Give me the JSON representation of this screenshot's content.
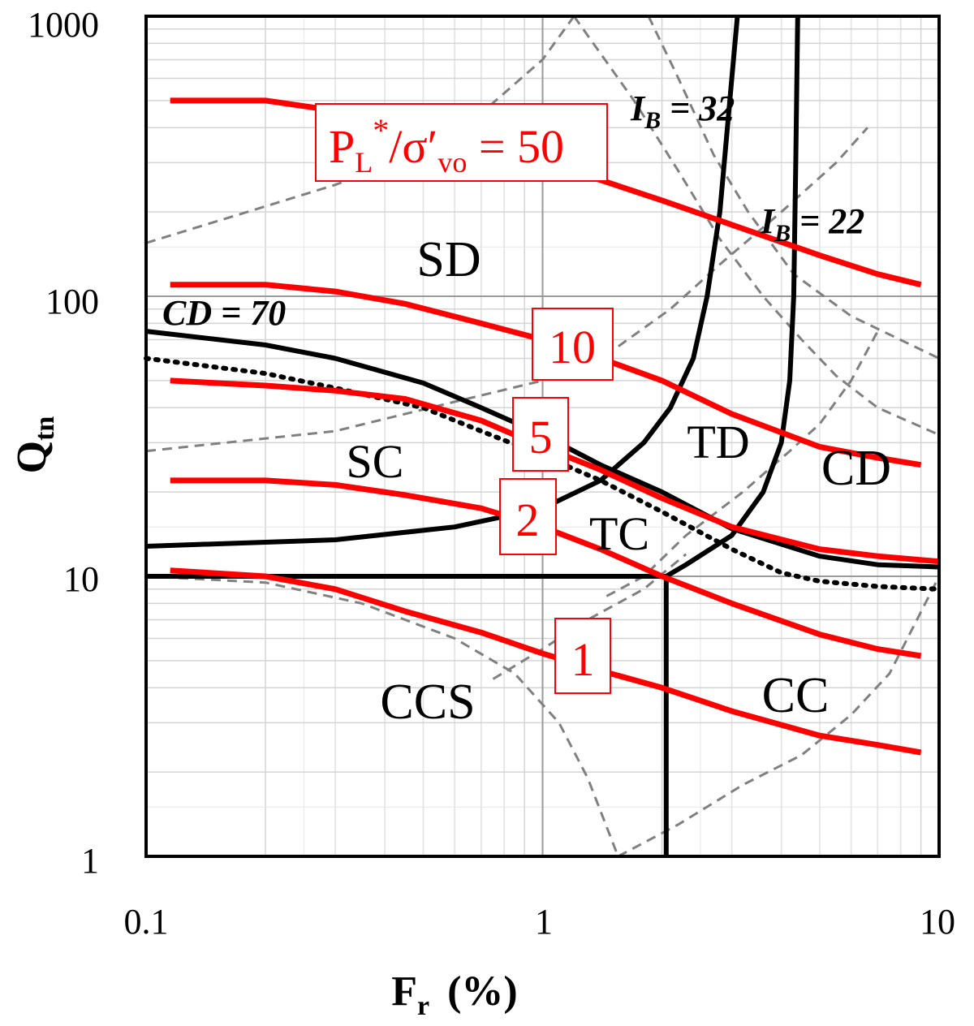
{
  "chart_data": {
    "type": "line",
    "xlabel_main": "F",
    "xlabel_sub": "r",
    "xlabel_unit": "(%)",
    "ylabel_main": "Q",
    "ylabel_sub": "tn",
    "xscale": "log",
    "yscale": "log",
    "xlim": [
      0.1,
      10
    ],
    "ylim": [
      1,
      1000
    ],
    "x_ticks": [
      "0.1",
      "1",
      "10"
    ],
    "y_ticks": [
      "1",
      "10",
      "100",
      "1000"
    ],
    "grid": true,
    "zones": [
      "SD",
      "SC",
      "TD",
      "CD",
      "TC",
      "CCS",
      "CC"
    ],
    "pl_label": {
      "prefix": "P",
      "sub1": "L",
      "sup": "*",
      "slash_sigma": "/σ′",
      "sub2": "vo",
      "suffix": " = 50"
    },
    "ib_labels": [
      {
        "main": "I",
        "sub": "B",
        "rest": " = 32"
      },
      {
        "main": "I",
        "sub": "B",
        "rest": " = 22"
      }
    ],
    "cd_label": "CD = 70",
    "series": [
      {
        "label": "50",
        "color": "#ff0000",
        "points": [
          [
            0.115,
            500
          ],
          [
            0.2,
            500
          ],
          [
            0.3,
            460
          ],
          [
            0.45,
            390
          ],
          [
            0.7,
            330
          ],
          [
            1.0,
            295
          ],
          [
            1.4,
            260
          ],
          [
            2.0,
            220
          ],
          [
            3.0,
            180
          ],
          [
            5.0,
            140
          ],
          [
            7.0,
            120
          ],
          [
            9.0,
            110
          ]
        ]
      },
      {
        "label": "10",
        "color": "#ff0000",
        "points": [
          [
            0.115,
            110
          ],
          [
            0.2,
            110
          ],
          [
            0.3,
            104
          ],
          [
            0.45,
            94
          ],
          [
            0.7,
            80
          ],
          [
            1.0,
            70
          ],
          [
            1.4,
            60
          ],
          [
            2.0,
            50
          ],
          [
            3.0,
            38
          ],
          [
            5.0,
            29
          ],
          [
            7.0,
            26.5
          ],
          [
            9.0,
            25
          ]
        ]
      },
      {
        "label": "5",
        "color": "#ff0000",
        "points": [
          [
            0.115,
            50
          ],
          [
            0.2,
            48
          ],
          [
            0.3,
            46
          ],
          [
            0.45,
            43
          ],
          [
            0.7,
            36
          ],
          [
            1.0,
            29
          ],
          [
            1.4,
            24
          ],
          [
            2.0,
            19
          ],
          [
            3.0,
            15
          ],
          [
            5.0,
            12.5
          ],
          [
            7.0,
            11.8
          ],
          [
            10,
            11.3
          ]
        ]
      },
      {
        "label": "2",
        "color": "#ff0000",
        "points": [
          [
            0.115,
            22
          ],
          [
            0.2,
            22
          ],
          [
            0.3,
            21.2
          ],
          [
            0.45,
            19.5
          ],
          [
            0.7,
            17.5
          ],
          [
            1.0,
            15
          ],
          [
            1.4,
            12.5
          ],
          [
            2.0,
            10
          ],
          [
            3.0,
            8
          ],
          [
            5.0,
            6.2
          ],
          [
            7.0,
            5.5
          ],
          [
            9.0,
            5.2
          ]
        ]
      },
      {
        "label": "1",
        "color": "#ff0000",
        "points": [
          [
            0.115,
            10.5
          ],
          [
            0.2,
            10
          ],
          [
            0.3,
            9
          ],
          [
            0.45,
            7.5
          ],
          [
            0.7,
            6.3
          ],
          [
            1.0,
            5.3
          ],
          [
            1.4,
            4.6
          ],
          [
            2.0,
            4
          ],
          [
            3.0,
            3.3
          ],
          [
            5.0,
            2.7
          ],
          [
            7.0,
            2.5
          ],
          [
            9.0,
            2.35
          ]
        ]
      },
      {
        "label": "CD = 70",
        "color": "#000000",
        "points": [
          [
            0.1,
            75
          ],
          [
            0.2,
            67
          ],
          [
            0.3,
            60
          ],
          [
            0.5,
            49
          ],
          [
            0.7,
            40
          ],
          [
            1.0,
            32
          ],
          [
            1.4,
            25
          ],
          [
            2.0,
            20
          ],
          [
            3.0,
            14.8
          ],
          [
            5.0,
            11.8
          ],
          [
            7.0,
            11
          ],
          [
            10,
            10.8
          ]
        ]
      },
      {
        "label": "dotted",
        "color": "#000000",
        "points": [
          [
            0.1,
            60
          ],
          [
            0.2,
            53
          ],
          [
            0.3,
            47
          ],
          [
            0.5,
            40
          ],
          [
            0.7,
            33
          ],
          [
            1.0,
            27
          ],
          [
            1.4,
            22
          ],
          [
            2.0,
            17
          ],
          [
            3.0,
            12.5
          ],
          [
            4.0,
            10.3
          ],
          [
            5.0,
            9.6
          ],
          [
            7.0,
            9.2
          ],
          [
            10,
            9
          ]
        ]
      },
      {
        "label": "I_B = 32",
        "color": "#000000",
        "points": [
          [
            0.1,
            12.8
          ],
          [
            0.3,
            13.5
          ],
          [
            0.6,
            15
          ],
          [
            1.0,
            17.5
          ],
          [
            1.4,
            22
          ],
          [
            1.8,
            30
          ],
          [
            2.1,
            40
          ],
          [
            2.4,
            60
          ],
          [
            2.6,
            100
          ],
          [
            2.8,
            200
          ],
          [
            3.0,
            600
          ],
          [
            3.1,
            1000
          ]
        ]
      },
      {
        "label": "I_B = 22",
        "color": "#000000",
        "points": [
          [
            2.05,
            10
          ],
          [
            2.3,
            11
          ],
          [
            3.0,
            14
          ],
          [
            3.6,
            20
          ],
          [
            4.0,
            30
          ],
          [
            4.2,
            50
          ],
          [
            4.3,
            100
          ],
          [
            4.35,
            300
          ],
          [
            4.4,
            1000
          ]
        ]
      },
      {
        "label": "Qtn = 10",
        "color": "#000000",
        "points": [
          [
            0.1,
            10
          ],
          [
            2.05,
            10
          ]
        ]
      },
      {
        "label": "Fr = 2",
        "color": "#000000",
        "points": [
          [
            2.05,
            1
          ],
          [
            2.05,
            10
          ]
        ]
      }
    ],
    "gray_dashed": [
      [
        [
          0.1,
          155
        ],
        [
          0.18,
          200
        ],
        [
          0.3,
          250
        ],
        [
          0.5,
          330
        ],
        [
          0.7,
          450
        ],
        [
          1.0,
          700
        ],
        [
          1.2,
          1000
        ]
      ],
      [
        [
          0.1,
          28
        ],
        [
          0.3,
          33
        ],
        [
          0.6,
          42
        ],
        [
          1.0,
          50
        ],
        [
          1.5,
          64
        ],
        [
          2.1,
          90
        ],
        [
          2.8,
          130
        ],
        [
          4.0,
          200
        ],
        [
          5.5,
          300
        ],
        [
          6.6,
          400
        ]
      ],
      [
        [
          1.85,
          1000
        ],
        [
          2.2,
          600
        ],
        [
          2.7,
          320
        ],
        [
          3.3,
          200
        ],
        [
          4.3,
          120
        ],
        [
          6.0,
          85
        ],
        [
          10,
          60
        ]
      ],
      [
        [
          1.2,
          1000
        ],
        [
          1.7,
          500
        ],
        [
          2.2,
          280
        ],
        [
          2.8,
          160
        ],
        [
          3.6,
          100
        ],
        [
          4.5,
          70
        ],
        [
          5.5,
          52
        ],
        [
          7.0,
          40
        ],
        [
          10,
          32
        ]
      ],
      [
        [
          1.45,
          8.5
        ],
        [
          1.8,
          10
        ],
        [
          2.3,
          14
        ],
        [
          3.2,
          20
        ],
        [
          4.2,
          28
        ],
        [
          5.0,
          35
        ],
        [
          6.0,
          50
        ],
        [
          7.0,
          75
        ]
      ],
      [
        [
          0.1,
          10
        ],
        [
          0.2,
          9.5
        ],
        [
          0.35,
          8
        ],
        [
          0.6,
          6
        ],
        [
          0.85,
          4.5
        ],
        [
          1.1,
          3
        ],
        [
          1.3,
          1.9
        ],
        [
          1.55,
          1
        ]
      ],
      [
        [
          1.55,
          1
        ],
        [
          2.2,
          1.3
        ],
        [
          3.2,
          1.8
        ],
        [
          4.5,
          2.3
        ],
        [
          6.0,
          3.2
        ],
        [
          7.5,
          4.5
        ],
        [
          10,
          10
        ]
      ],
      [
        [
          0.75,
          4.3
        ],
        [
          1.0,
          5.5
        ],
        [
          1.3,
          7
        ],
        [
          1.8,
          9
        ],
        [
          2.3,
          12
        ]
      ]
    ]
  }
}
